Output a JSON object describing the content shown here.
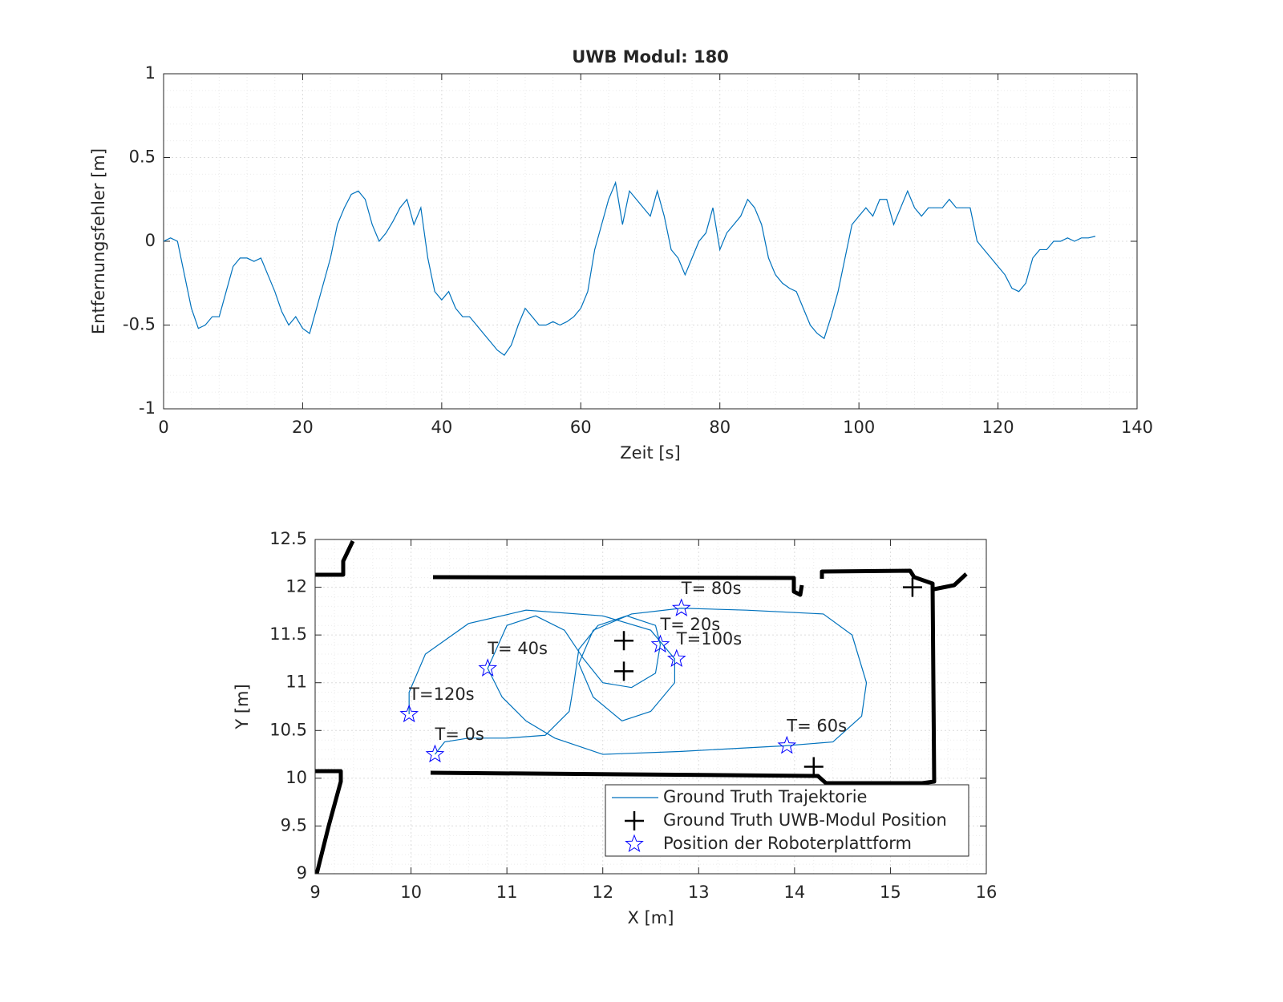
{
  "chart_data": [
    {
      "type": "line",
      "title": "UWB Modul: 180",
      "x_label": "Zeit [s]",
      "y_label": "Entfernungsfehler [m]",
      "color": "#0072bd",
      "x": [
        0,
        1,
        2,
        3,
        4,
        5,
        6,
        7,
        8,
        9,
        10,
        11,
        12,
        13,
        14,
        15,
        16,
        17,
        18,
        19,
        20,
        21,
        22,
        23,
        24,
        25,
        26,
        27,
        28,
        29,
        30,
        31,
        32,
        33,
        34,
        35,
        36,
        37,
        38,
        39,
        40,
        41,
        42,
        43,
        44,
        45,
        46,
        47,
        48,
        49,
        50,
        51,
        52,
        53,
        54,
        55,
        56,
        57,
        58,
        59,
        60,
        61,
        62,
        63,
        64,
        65,
        66,
        67,
        68,
        69,
        70,
        71,
        72,
        73,
        74,
        75,
        76,
        77,
        78,
        79,
        80,
        81,
        82,
        83,
        84,
        85,
        86,
        87,
        88,
        89,
        90,
        91,
        92,
        93,
        94,
        95,
        96,
        97,
        98,
        99,
        100,
        101,
        102,
        103,
        104,
        105,
        106,
        107,
        108,
        109,
        110,
        111,
        112,
        113,
        114,
        115,
        116,
        117,
        118,
        119,
        120,
        121,
        122,
        123,
        124,
        125,
        126,
        127,
        128,
        129,
        130,
        131,
        132,
        133,
        134
      ],
      "values": [
        0.0,
        0.02,
        0.0,
        -0.2,
        -0.4,
        -0.52,
        -0.5,
        -0.45,
        -0.45,
        -0.3,
        -0.15,
        -0.1,
        -0.1,
        -0.12,
        -0.1,
        -0.2,
        -0.3,
        -0.42,
        -0.5,
        -0.45,
        -0.52,
        -0.55,
        -0.4,
        -0.25,
        -0.1,
        0.1,
        0.2,
        0.28,
        0.3,
        0.25,
        0.1,
        0.0,
        0.05,
        0.12,
        0.2,
        0.25,
        0.1,
        0.2,
        -0.1,
        -0.3,
        -0.35,
        -0.3,
        -0.4,
        -0.45,
        -0.45,
        -0.5,
        -0.55,
        -0.6,
        -0.65,
        -0.68,
        -0.62,
        -0.5,
        -0.4,
        -0.45,
        -0.5,
        -0.5,
        -0.48,
        -0.5,
        -0.48,
        -0.45,
        -0.4,
        -0.3,
        -0.05,
        0.1,
        0.25,
        0.35,
        0.1,
        0.3,
        0.25,
        0.2,
        0.15,
        0.3,
        0.15,
        -0.05,
        -0.1,
        -0.2,
        -0.1,
        0.0,
        0.05,
        0.2,
        -0.05,
        0.05,
        0.1,
        0.15,
        0.25,
        0.2,
        0.1,
        -0.1,
        -0.2,
        -0.25,
        -0.28,
        -0.3,
        -0.4,
        -0.5,
        -0.55,
        -0.58,
        -0.45,
        -0.3,
        -0.1,
        0.1,
        0.15,
        0.2,
        0.15,
        0.25,
        0.25,
        0.1,
        0.2,
        0.3,
        0.2,
        0.15,
        0.2,
        0.2,
        0.2,
        0.25,
        0.2,
        0.2,
        0.2,
        0.0,
        -0.05,
        -0.1,
        -0.15,
        -0.2,
        -0.28,
        -0.3,
        -0.25,
        -0.1,
        -0.05,
        -0.05,
        0.0,
        0.0,
        0.02,
        0.0,
        0.02,
        0.02,
        0.03
      ],
      "xlim": [
        0,
        140
      ],
      "xticks": [
        0,
        20,
        40,
        60,
        80,
        100,
        120,
        140
      ],
      "ylim": [
        -1,
        1
      ],
      "yticks": [
        -1,
        -0.5,
        0,
        0.5,
        1
      ],
      "grid": true,
      "minor_grid": true
    },
    {
      "type": "line",
      "x_label": "X [m]",
      "y_label": "Y [m]",
      "xlim": [
        9,
        16
      ],
      "xticks": [
        9,
        10,
        11,
        12,
        13,
        14,
        15,
        16
      ],
      "ylim": [
        9,
        12.5
      ],
      "yticks": [
        9,
        9.5,
        10,
        10.5,
        11,
        11.5,
        12,
        12.5
      ],
      "grid": true,
      "minor_grid": true,
      "legend": "southeast",
      "series": [
        {
          "name": "Ground Truth Trajektorie",
          "color": "#0072bd",
          "style": "line",
          "x": [
            10.25,
            10.35,
            10.6,
            11.0,
            11.4,
            11.65,
            11.7,
            11.75,
            11.95,
            12.25,
            12.55,
            12.6,
            12.55,
            12.3,
            12.0,
            11.8,
            11.6,
            11.3,
            11.0,
            10.8,
            10.95,
            11.2,
            11.5,
            12.0,
            12.8,
            13.9,
            14.4,
            14.7,
            14.75,
            14.6,
            14.3,
            13.5,
            12.82,
            12.3,
            11.9,
            11.75,
            11.9,
            12.2,
            12.5,
            12.75,
            12.75,
            12.5,
            12.0,
            11.2,
            10.6,
            10.15,
            9.98,
            9.98
          ],
          "values": [
            10.25,
            10.38,
            10.42,
            10.42,
            10.45,
            10.7,
            11.0,
            11.35,
            11.6,
            11.7,
            11.6,
            11.4,
            11.1,
            10.95,
            11.0,
            11.25,
            11.55,
            11.7,
            11.6,
            11.15,
            10.85,
            10.6,
            10.42,
            10.25,
            10.28,
            10.34,
            10.38,
            10.65,
            11.0,
            11.5,
            11.72,
            11.76,
            11.78,
            11.72,
            11.55,
            11.2,
            10.85,
            10.6,
            10.7,
            11.0,
            11.25,
            11.55,
            11.7,
            11.76,
            11.62,
            11.3,
            10.9,
            10.67
          ]
        },
        {
          "name": "Ground Truth UWB-Modul Position",
          "color": "#000000",
          "style": "plus",
          "x": [
            12.22,
            12.22,
            15.23,
            14.2
          ],
          "values": [
            11.44,
            11.12,
            12.0,
            10.12
          ]
        },
        {
          "name": "Position der Roboterplattform",
          "color": "#0000ff",
          "style": "star",
          "x": [
            10.25,
            12.6,
            10.8,
            13.92,
            12.82,
            12.77,
            9.98
          ],
          "values": [
            10.25,
            11.4,
            11.15,
            10.34,
            11.78,
            11.25,
            10.67
          ],
          "labels": [
            "T=  0s",
            "T= 20s",
            "T= 40s",
            "T= 60s",
            "T= 80s",
            "T=100s",
            "T=120s"
          ]
        }
      ]
    }
  ]
}
